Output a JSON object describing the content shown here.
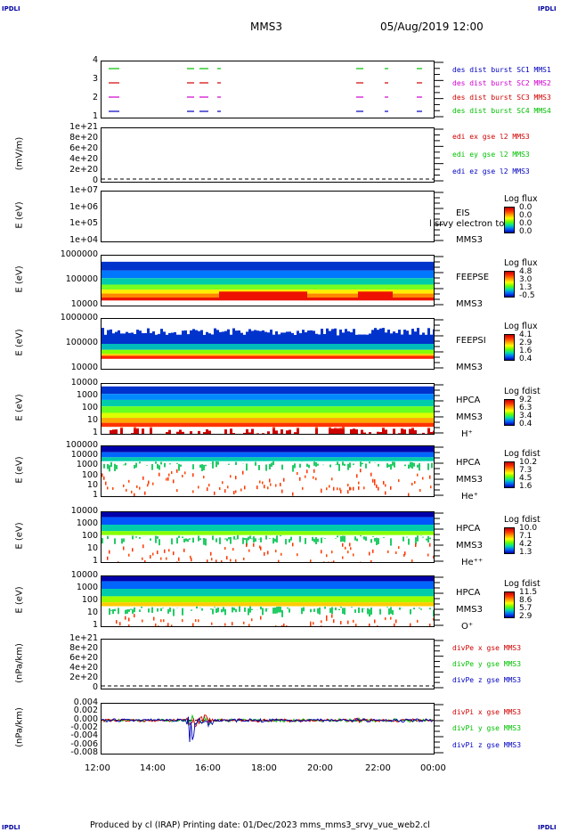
{
  "corner_label": "IPDLI",
  "header": {
    "spacecraft": "MMS3",
    "datetime": "05/Aug/2019 12:00"
  },
  "footer": {
    "text": "Produced by cl (IRAP)    Printing date: 01/Dec/2023    mms_mms3_srvy_vue_web2.cl"
  },
  "colors": {
    "red": "#d00000",
    "green": "#00c000",
    "blue": "#0000c0",
    "magenta": "#d000d0"
  },
  "chart_data": [
    {
      "type": "line",
      "panel": "burst",
      "yticks": [
        "4",
        "3",
        "2",
        "1"
      ],
      "legend": [
        {
          "text": "des dist burst SC1 MMS1",
          "color": "#0000c0"
        },
        {
          "text": "des dist burst SC2 MMS2",
          "color": "#d000d0"
        },
        {
          "text": "des dist burst SC3 MMS3",
          "color": "#d00000"
        },
        {
          "text": "des dist burst SC4 MMS4",
          "color": "#00c000"
        }
      ],
      "x_range": [
        "12:00",
        "00:00"
      ]
    },
    {
      "type": "line",
      "panel": "edp",
      "ylabel": "(mV/m)",
      "yticks": [
        "1e+21",
        "8e+20",
        "6e+20",
        "4e+20",
        "2e+20",
        "0"
      ],
      "legend": [
        {
          "text": "edi ex gse l2 MMS3",
          "color": "#d00000"
        },
        {
          "text": "edi ey gse l2 MMS3",
          "color": "#00c000"
        },
        {
          "text": "edi ez gse l2 MMS3",
          "color": "#0000c0"
        }
      ]
    },
    {
      "type": "heatmap",
      "panel": "eis",
      "ylabel": "E (eV)",
      "yticks": [
        "1e+07",
        "1e+06",
        "1e+05",
        "1e+04"
      ],
      "cb_title": "Log flux",
      "cb_values": [
        "0.0",
        "0.0",
        "0.0",
        "0.0"
      ],
      "side": [
        "EIS",
        "MMS3"
      ],
      "overlay": "l srvy electron to"
    },
    {
      "type": "heatmap",
      "panel": "feeps_e",
      "ylabel": "E (eV)",
      "yticks": [
        "1000000",
        "100000",
        "10000"
      ],
      "cb_title": "Log flux",
      "cb_values": [
        "4.8",
        "3.0",
        "1.3",
        "-0.5"
      ],
      "side": [
        "FEEPSE",
        "MMS3"
      ]
    },
    {
      "type": "heatmap",
      "panel": "feeps_i",
      "ylabel": "E (eV)",
      "yticks": [
        "1000000",
        "100000",
        "10000"
      ],
      "cb_title": "Log flux",
      "cb_values": [
        "4.1",
        "2.9",
        "1.6",
        "0.4"
      ],
      "side": [
        "FEEPSI",
        "MMS3"
      ]
    },
    {
      "type": "heatmap",
      "panel": "hpca_h",
      "ylabel": "E (eV)",
      "yticks": [
        "10000",
        "1000",
        "100",
        "10",
        "1"
      ],
      "cb_title": "Log fdist",
      "cb_values": [
        "9.2",
        "6.3",
        "3.4",
        "0.4"
      ],
      "side": [
        "HPCA",
        "MMS3",
        "H⁺"
      ]
    },
    {
      "type": "heatmap",
      "panel": "hpca_he",
      "ylabel": "E (eV)",
      "yticks": [
        "100000",
        "10000",
        "1000",
        "100",
        "10",
        "1"
      ],
      "cb_title": "Log fdist",
      "cb_values": [
        "10.2",
        "7.3",
        "4.5",
        "1.6"
      ],
      "side": [
        "HPCA",
        "MMS3",
        "He⁺"
      ]
    },
    {
      "type": "heatmap",
      "panel": "hpca_hepp",
      "ylabel": "E (eV)",
      "yticks": [
        "10000",
        "1000",
        "100",
        "10",
        "1"
      ],
      "cb_title": "Log fdist",
      "cb_values": [
        "10.0",
        "7.1",
        "4.2",
        "1.3"
      ],
      "side": [
        "HPCA",
        "MMS3",
        "He⁺⁺"
      ]
    },
    {
      "type": "heatmap",
      "panel": "hpca_o",
      "ylabel": "E (eV)",
      "yticks": [
        "10000",
        "1000",
        "100",
        "10",
        "1"
      ],
      "cb_title": "Log fdist",
      "cb_values": [
        "11.5",
        "8.6",
        "5.7",
        "2.9"
      ],
      "side": [
        "HPCA",
        "MMS3",
        "O⁺"
      ]
    },
    {
      "type": "line",
      "panel": "divpe",
      "ylabel": "(nPa/km)",
      "yticks": [
        "1e+21",
        "8e+20",
        "6e+20",
        "4e+20",
        "2e+20",
        "0"
      ],
      "legend": [
        {
          "text": "divPe x gse MMS3",
          "color": "#d00000"
        },
        {
          "text": "divPe y gse MMS3",
          "color": "#00c000"
        },
        {
          "text": "divPe z gse MMS3",
          "color": "#0000c0"
        }
      ]
    },
    {
      "type": "line",
      "panel": "divpi",
      "ylabel": "(nPa/km)",
      "yticks": [
        "0.004",
        "0.002",
        "0.000",
        "-0.002",
        "-0.004",
        "-0.006",
        "-0.008"
      ],
      "legend": [
        {
          "text": "divPi x gse MMS3",
          "color": "#d00000"
        },
        {
          "text": "divPi y gse MMS3",
          "color": "#00c000"
        },
        {
          "text": "divPi z gse MMS3",
          "color": "#0000c0"
        }
      ],
      "ylim": [
        -0.008,
        0.004
      ]
    }
  ],
  "xticks": [
    "12:00",
    "14:00",
    "16:00",
    "18:00",
    "20:00",
    "22:00",
    "00:00"
  ]
}
